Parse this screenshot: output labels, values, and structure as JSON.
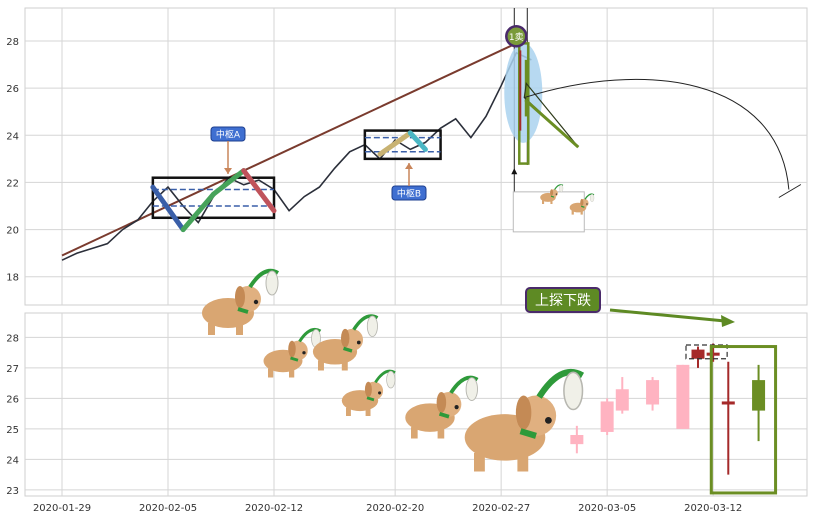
{
  "chart_data": [
    {
      "type": "line",
      "panel": "top",
      "ylim": [
        16.8,
        29.4
      ],
      "yticks": [
        18,
        20,
        22,
        24,
        26,
        28
      ],
      "grid": true,
      "x_dates": [
        "2020-01-29",
        "2020-02-05",
        "2020-02-12",
        "2020-02-20",
        "2020-02-27",
        "2020-03-05",
        "2020-03-12"
      ],
      "price_series": [
        [
          "2020-01-29",
          18.7
        ],
        [
          "2020-01-30",
          19.0
        ],
        [
          "2020-01-31",
          19.2
        ],
        [
          "2020-02-01",
          19.4
        ],
        [
          "2020-02-02",
          20.0
        ],
        [
          "2020-02-03",
          20.4
        ],
        [
          "2020-02-04",
          21.2
        ],
        [
          "2020-02-05",
          21.8
        ],
        [
          "2020-02-06",
          21.0
        ],
        [
          "2020-02-07",
          20.3
        ],
        [
          "2020-02-08",
          21.4
        ],
        [
          "2020-02-09",
          22.2
        ],
        [
          "2020-02-10",
          21.9
        ],
        [
          "2020-02-11",
          22.1
        ],
        [
          "2020-02-12",
          21.7
        ],
        [
          "2020-02-13",
          20.8
        ],
        [
          "2020-02-14",
          21.4
        ],
        [
          "2020-02-15",
          21.8
        ],
        [
          "2020-02-16",
          22.6
        ],
        [
          "2020-02-17",
          23.3
        ],
        [
          "2020-02-18",
          23.6
        ],
        [
          "2020-02-19",
          23.0
        ],
        [
          "2020-02-20",
          23.8
        ],
        [
          "2020-02-21",
          23.4
        ],
        [
          "2020-02-22",
          23.7
        ],
        [
          "2020-02-23",
          24.3
        ],
        [
          "2020-02-24",
          24.7
        ],
        [
          "2020-02-25",
          23.9
        ],
        [
          "2020-02-26",
          24.8
        ],
        [
          "2020-02-27",
          26.1
        ],
        [
          "2020-02-28",
          27.5
        ],
        [
          "2020-02-29",
          27.2
        ]
      ],
      "trend_line": [
        [
          "2020-01-29",
          18.9
        ],
        [
          "2020-02-28",
          27.9
        ]
      ],
      "zigzag_strokes": [
        {
          "from": [
            "2020-02-04",
            21.8
          ],
          "to": [
            "2020-02-06",
            20.0
          ],
          "color": "#3a5fa8"
        },
        {
          "from": [
            "2020-02-06",
            20.0
          ],
          "to": [
            "2020-02-08",
            21.5
          ],
          "color": "#46a35a"
        },
        {
          "from": [
            "2020-02-08",
            21.5
          ],
          "to": [
            "2020-02-10",
            22.5
          ],
          "color": "#46a35a"
        },
        {
          "from": [
            "2020-02-10",
            22.5
          ],
          "to": [
            "2020-02-12",
            20.8
          ],
          "color": "#c0535b"
        },
        {
          "from": [
            "2020-02-19",
            23.2
          ],
          "to": [
            "2020-02-21",
            24.1
          ],
          "color": "#c8b272"
        },
        {
          "from": [
            "2020-02-21",
            24.1
          ],
          "to": [
            "2020-02-22",
            23.4
          ],
          "color": "#4bb7c4"
        }
      ],
      "pivot_boxes": [
        {
          "label": "中枢A",
          "x0": "2020-02-04",
          "x1": "2020-02-12",
          "y0": 20.5,
          "y1": 22.2,
          "mid_top": 21.7,
          "mid_bottom": 21.0
        },
        {
          "label": "中枢B",
          "x0": "2020-02-18",
          "x1": "2020-02-23",
          "y0": 23.0,
          "y1": 24.2,
          "mid_top": 23.9,
          "mid_bottom": 23.3
        }
      ],
      "markers": [
        {
          "label": "1卖",
          "x": "2020-02-28",
          "y": 28.2
        }
      ],
      "arc_annotation": {
        "from": [
          "2020-02-28",
          25.6
        ],
        "to": [
          "2020-03-17",
          21.7
        ]
      }
    },
    {
      "type": "candlestick",
      "panel": "bottom",
      "ylim": [
        22.8,
        28.8
      ],
      "yticks": [
        23,
        24,
        25,
        26,
        27,
        28
      ],
      "grid": true,
      "annotation": "上探下跌",
      "candles": [
        {
          "date": "2020-03-03",
          "open": 24.5,
          "close": 24.8,
          "high": 25.1,
          "low": 24.2
        },
        {
          "date": "2020-03-05",
          "open": 24.9,
          "close": 25.9,
          "high": 26.0,
          "low": 24.8
        },
        {
          "date": "2020-03-06",
          "open": 25.6,
          "close": 26.3,
          "high": 26.7,
          "low": 25.5
        },
        {
          "date": "2020-03-08",
          "open": 25.8,
          "close": 26.6,
          "high": 26.7,
          "low": 25.6
        },
        {
          "date": "2020-03-10",
          "open": 25.0,
          "close": 27.1,
          "high": 27.1,
          "low": 25.0
        },
        {
          "date": "2020-03-11",
          "open": 27.6,
          "close": 27.3,
          "high": 27.7,
          "low": 27.0
        },
        {
          "date": "2020-03-12",
          "open": 27.5,
          "close": 27.4,
          "high": 27.8,
          "low": 27.2
        },
        {
          "date": "2020-03-13",
          "open": 25.9,
          "close": 25.8,
          "high": 27.2,
          "low": 23.5
        },
        {
          "date": "2020-03-15",
          "open": 25.6,
          "close": 26.6,
          "high": 27.1,
          "low": 24.6
        }
      ]
    }
  ],
  "x_tick_labels": [
    "2020-01-29",
    "2020-02-05",
    "2020-02-12",
    "2020-02-20",
    "2020-02-27",
    "2020-03-05",
    "2020-03-12"
  ],
  "labels": {
    "pivot_a": "中枢A",
    "pivot_b": "中枢B",
    "sell_marker": "1卖",
    "bottom_annotation": "上探下跌"
  },
  "colors": {
    "grid": "#d5d5d5",
    "axes_bg": "#ffffff",
    "price_line": "#2b2f3a",
    "trend_line": "#7a3b2e",
    "label_box": "#3f6fd1",
    "annotation_box": "#5e8a24",
    "up_candle": "#ffb3c1",
    "down_candle": "#9bdb9b",
    "highlight_up": "#a52a2a",
    "highlight_down": "#6b8e23"
  }
}
